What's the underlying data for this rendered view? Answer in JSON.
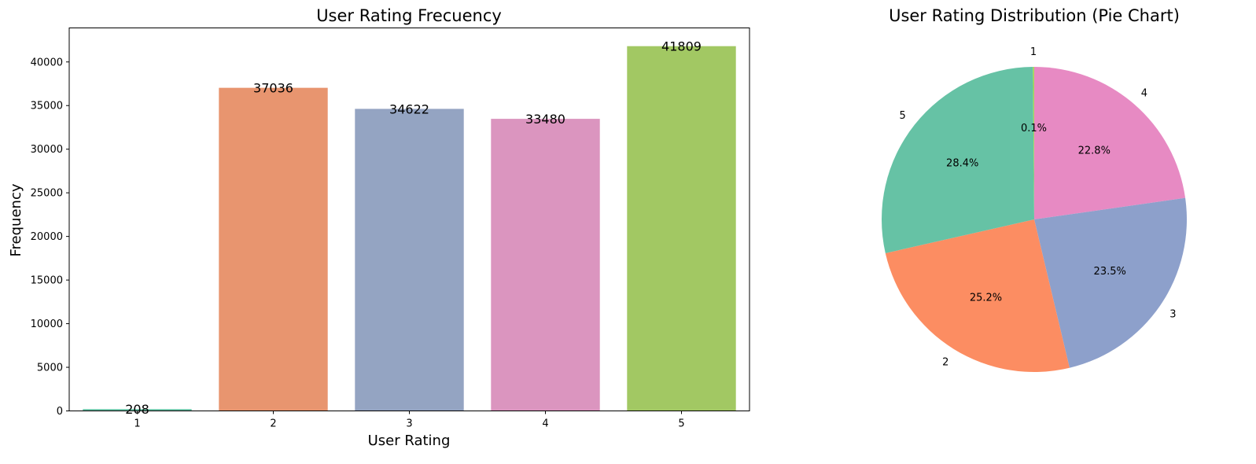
{
  "chart_data": [
    {
      "type": "bar",
      "title": "User Rating Frecuency",
      "xlabel": "User Rating",
      "ylabel": "Frequency",
      "categories": [
        "1",
        "2",
        "3",
        "4",
        "5"
      ],
      "values": [
        208,
        37036,
        34622,
        33480,
        41809
      ],
      "data_labels": [
        "208",
        "37036",
        "34622",
        "33480",
        "41809"
      ],
      "ylim": [
        0,
        43900
      ],
      "yticks": [
        0,
        5000,
        10000,
        15000,
        20000,
        25000,
        30000,
        35000,
        40000
      ],
      "ytick_labels": [
        "0",
        "5000",
        "10000",
        "15000",
        "20000",
        "25000",
        "30000",
        "35000",
        "40000"
      ],
      "colors": [
        "#66c2a5",
        "#e8956f",
        "#94a4c2",
        "#db95bf",
        "#a2c863"
      ],
      "grid": false
    },
    {
      "type": "pie",
      "title": "User Rating Distribution (Pie Chart)",
      "labels": [
        "1",
        "2",
        "3",
        "4",
        "5"
      ],
      "values": [
        208,
        37036,
        34622,
        33480,
        41809
      ],
      "pct_labels": [
        "0.1%",
        "25.2%",
        "23.5%",
        "22.8%",
        "28.4%"
      ],
      "slice_order": [
        "4",
        "3",
        "2",
        "5",
        "1"
      ],
      "colors": {
        "1": "#a6d854",
        "2": "#fc8d62",
        "3": "#8da0cb",
        "4": "#e78ac3",
        "5": "#66c2a5"
      }
    }
  ]
}
